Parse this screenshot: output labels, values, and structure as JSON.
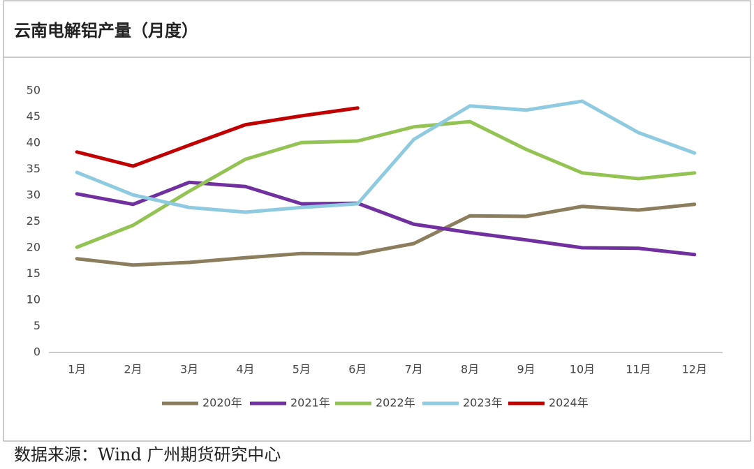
{
  "chart_data": {
    "type": "line",
    "title": "云南电解铝产量（月度）",
    "categories": [
      "1月",
      "2月",
      "3月",
      "4月",
      "5月",
      "6月",
      "7月",
      "8月",
      "9月",
      "10月",
      "11月",
      "12月"
    ],
    "series": [
      {
        "name": "2020年",
        "color": "#8c7d5c",
        "values": [
          17.9,
          16.7,
          17.2,
          18.1,
          18.9,
          18.8,
          20.8,
          26.1,
          26.0,
          27.9,
          27.2,
          28.3
        ]
      },
      {
        "name": "2021年",
        "color": "#7030a0",
        "values": [
          30.3,
          28.3,
          32.5,
          31.7,
          28.4,
          28.5,
          24.5,
          22.9,
          21.5,
          20.0,
          19.9,
          18.7
        ]
      },
      {
        "name": "2022年",
        "color": "#92c353",
        "values": [
          20.1,
          24.3,
          30.8,
          36.9,
          40.1,
          40.4,
          43.1,
          44.1,
          38.8,
          34.3,
          33.2,
          34.3
        ]
      },
      {
        "name": "2023年",
        "color": "#8fcbe0",
        "values": [
          34.4,
          30.1,
          27.7,
          26.8,
          27.7,
          28.4,
          40.7,
          47.1,
          46.3,
          48.0,
          42.0,
          38.1
        ]
      },
      {
        "name": "2024年",
        "color": "#c00000",
        "values": [
          38.3,
          35.6,
          39.6,
          43.5,
          45.2,
          46.7,
          null,
          null,
          null,
          null,
          null,
          null
        ]
      }
    ],
    "ylim": [
      0,
      50
    ],
    "yticks": [
      0,
      5,
      10,
      15,
      20,
      25,
      30,
      35,
      40,
      45,
      50
    ],
    "grid": false,
    "legend": "bottom",
    "source": "数据来源：Wind  广州期货研究中心"
  }
}
